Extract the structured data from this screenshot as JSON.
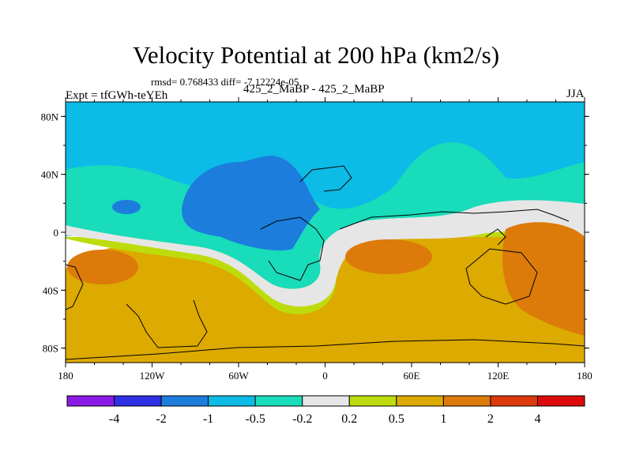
{
  "title": "Velocity Potential at 200 hPa (km2/s)",
  "stats": "rmsd= 0.768433 diff= -7.12224e-05",
  "expt": "Expt = tfGWh-teYEh",
  "case_label": "425_2_MaBP - 425_2_MaBP",
  "season": "JJA",
  "chart_data": {
    "type": "contour-map",
    "title": "Velocity Potential at 200 hPa (km2/s)",
    "variable": "Velocity Potential",
    "level": "200 hPa",
    "units": "km2/s",
    "x_axis": {
      "range": [
        -180,
        180
      ],
      "ticks": [
        -180,
        -120,
        -60,
        0,
        60,
        120,
        180
      ],
      "tick_labels": [
        "180",
        "120W",
        "60W",
        "0",
        "60E",
        "120E",
        "180"
      ]
    },
    "y_axis": {
      "range": [
        -90,
        90
      ],
      "ticks": [
        80,
        40,
        0,
        -40,
        -80
      ],
      "tick_labels": [
        "80N",
        "40N",
        "0",
        "40S",
        "80S"
      ]
    },
    "levels": [
      -4,
      -2,
      -1,
      -0.5,
      -0.2,
      0.2,
      0.5,
      1,
      2,
      4
    ],
    "level_labels": [
      "-4",
      "-2",
      "-1",
      "-0.5",
      "-0.2",
      "0.2",
      "0.5",
      "1",
      "2",
      "4"
    ],
    "colors": [
      "#8a1ae6",
      "#2f2fe6",
      "#1c7ddc",
      "#0cbbe6",
      "#18dcba",
      "#e6e6e6",
      "#bedc0c",
      "#dcaa00",
      "#dc7a0a",
      "#dc3a0a",
      "#dc0a0a"
    ],
    "bands": [
      {
        "name": "northern-background",
        "level_index": 3
      },
      {
        "name": "high-latitude-band",
        "level_index": 4
      },
      {
        "name": "mid-atlantic-low",
        "level_index": 2
      },
      {
        "name": "zero-band",
        "level_index": 5
      },
      {
        "name": "southern-background",
        "level_index": 7
      },
      {
        "name": "transition-band",
        "level_index": 6
      },
      {
        "name": "pacific-high",
        "level_index": 8
      }
    ]
  }
}
